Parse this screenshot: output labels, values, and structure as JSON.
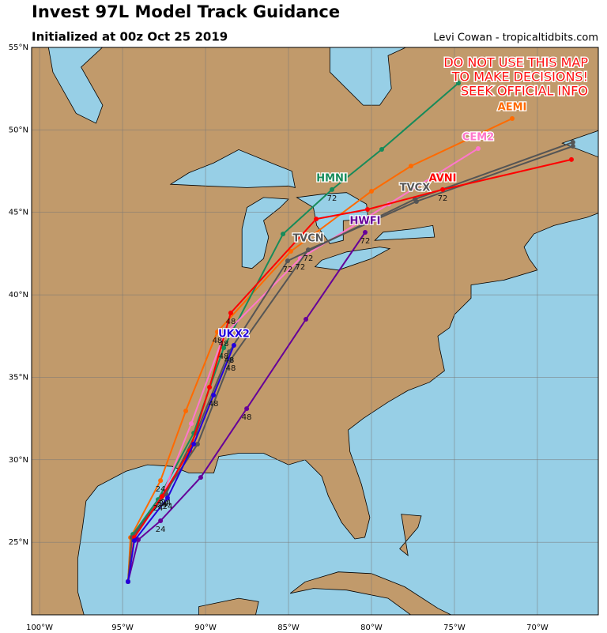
{
  "title": "Invest 97L Model Track Guidance",
  "subtitle": "Initialized at 00z Oct 25 2019",
  "credit": "Levi Cowan - tropicaltidbits.com",
  "warning": [
    "DO NOT USE THIS MAP",
    "TO MAKE DECISIONS!",
    "SEEK OFFICIAL INFO"
  ],
  "extent": {
    "lon": [
      -100.48,
      -66.33
    ],
    "lat": [
      20.6,
      55
    ]
  },
  "lat_ticks": [
    {
      "value": 25,
      "label": "25°N"
    },
    {
      "value": 30,
      "label": "30°N"
    },
    {
      "value": 35,
      "label": "35°N"
    },
    {
      "value": 40,
      "label": "40°N"
    },
    {
      "value": 45,
      "label": "45°N"
    },
    {
      "value": 50,
      "label": "50°N"
    },
    {
      "value": 55,
      "label": "55°N"
    }
  ],
  "lon_ticks": [
    {
      "value": -100,
      "label": "100°W"
    },
    {
      "value": -95,
      "label": "95°W"
    },
    {
      "value": -90,
      "label": "90°W"
    },
    {
      "value": -85,
      "label": "85°W"
    },
    {
      "value": -80,
      "label": "80°W"
    },
    {
      "value": -75,
      "label": "75°W"
    },
    {
      "value": -70,
      "label": "70°W"
    }
  ],
  "tracks": [
    {
      "name": "AEMI",
      "color": "#ff6a00",
      "points": [
        [
          -94.67,
          22.61
        ],
        [
          -94.52,
          25.29
        ],
        [
          -92.71,
          28.74
        ],
        [
          -91.19,
          32.96
        ],
        [
          -89.29,
          37.75
        ],
        [
          -84.86,
          42.64
        ],
        [
          -80.0,
          46.28
        ],
        [
          -77.62,
          47.81
        ],
        [
          -71.52,
          50.69
        ]
      ],
      "hour_labels": [
        null,
        null,
        "24",
        null,
        "48",
        null,
        null,
        null,
        null
      ]
    },
    {
      "name": "HMNI",
      "color": "#178b5a",
      "points": [
        [
          -94.67,
          22.61
        ],
        [
          -94.38,
          25.48
        ],
        [
          -92.86,
          27.59
        ],
        [
          -90.71,
          31.62
        ],
        [
          -88.9,
          36.79
        ],
        [
          -85.33,
          43.69
        ],
        [
          -82.38,
          46.38
        ],
        [
          -79.38,
          48.82
        ],
        [
          -74.76,
          52.84
        ]
      ],
      "hour_labels": [
        null,
        null,
        "24",
        null,
        "48",
        null,
        "72",
        null,
        null
      ]
    },
    {
      "name": "CEM2",
      "color": "#ff77cc",
      "points": [
        [
          -94.67,
          22.61
        ],
        [
          -94.38,
          25.29
        ],
        [
          -92.62,
          27.78
        ],
        [
          -90.86,
          32.19
        ],
        [
          -88.9,
          37.56
        ],
        [
          -84.29,
          42.21
        ],
        [
          -78.95,
          45.51
        ],
        [
          -73.57,
          48.87
        ]
      ],
      "hour_labels": [
        null,
        null,
        "24",
        null,
        "48",
        "72",
        null,
        null
      ]
    },
    {
      "name": "TVCX",
      "color": "#555555",
      "points": [
        [
          -94.67,
          22.61
        ],
        [
          -94.43,
          25.29
        ],
        [
          -92.38,
          27.93
        ],
        [
          -90.57,
          31.62
        ],
        [
          -88.57,
          36.55
        ],
        [
          -85.05,
          42.06
        ],
        [
          -77.38,
          45.8
        ],
        [
          -67.86,
          49.25
        ]
      ],
      "hour_labels": [
        null,
        null,
        "24",
        null,
        "48",
        "72",
        null,
        null
      ]
    },
    {
      "name": "TVCN",
      "color": "#555555",
      "points": [
        [
          -94.67,
          22.61
        ],
        [
          -94.43,
          25.29
        ],
        [
          -92.52,
          27.88
        ],
        [
          -90.48,
          30.95
        ],
        [
          -88.48,
          36.07
        ],
        [
          -83.81,
          42.73
        ],
        [
          -77.29,
          45.66
        ],
        [
          -67.86,
          49.01
        ]
      ],
      "hour_labels": [
        null,
        null,
        "24",
        null,
        "48",
        "72",
        null,
        null
      ]
    },
    {
      "name": "AVNI",
      "color": "#ff0000",
      "points": [
        [
          -94.67,
          22.61
        ],
        [
          -94.29,
          25.29
        ],
        [
          -92.62,
          27.78
        ],
        [
          -90.95,
          30.56
        ],
        [
          -89.76,
          34.4
        ],
        [
          -88.48,
          38.9
        ],
        [
          -83.33,
          44.6
        ],
        [
          -80.24,
          45.18
        ],
        [
          -75.71,
          46.38
        ],
        [
          -67.95,
          48.2
        ]
      ],
      "hour_labels": [
        null,
        null,
        "24",
        null,
        null,
        "48",
        null,
        null,
        "72",
        null
      ]
    },
    {
      "name": "HWFI",
      "color": "#660099",
      "points": [
        [
          -94.67,
          22.61
        ],
        [
          -94.05,
          25.15
        ],
        [
          -92.71,
          26.3
        ],
        [
          -90.29,
          28.93
        ],
        [
          -87.52,
          33.1
        ],
        [
          -83.95,
          38.52
        ],
        [
          -80.38,
          43.79
        ]
      ],
      "hour_labels": [
        null,
        null,
        "24",
        null,
        "48",
        null,
        "72"
      ]
    },
    {
      "name": "UKX2",
      "color": "#2200dd",
      "points": [
        [
          -94.67,
          22.61
        ],
        [
          -94.29,
          25.1
        ],
        [
          -92.29,
          27.69
        ],
        [
          -90.71,
          30.95
        ],
        [
          -89.52,
          33.92
        ],
        [
          -88.29,
          36.94
        ]
      ],
      "hour_labels": [
        null,
        null,
        "24",
        null,
        "48",
        null
      ]
    }
  ]
}
